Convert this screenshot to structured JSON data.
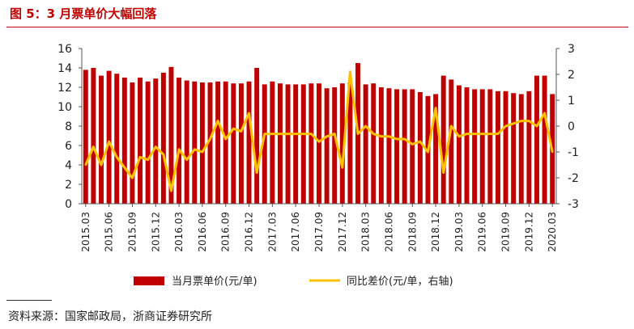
{
  "title": "图 5：3 月票单价大幅回落",
  "source": "资料来源：国家邮政局，浙商证券研究所",
  "colors": {
    "bar": "#c00000",
    "line": "#ffc000",
    "title": "#c00000"
  },
  "chart_data": {
    "type": "bar",
    "legend_position": "bottom",
    "grid": false,
    "x": [
      "2015.03",
      "2015.04",
      "2015.05",
      "2015.06",
      "2015.07",
      "2015.08",
      "2015.09",
      "2015.10",
      "2015.11",
      "2015.12",
      "2016.01",
      "2016.02",
      "2016.03",
      "2016.04",
      "2016.05",
      "2016.06",
      "2016.07",
      "2016.08",
      "2016.09",
      "2016.10",
      "2016.11",
      "2016.12",
      "2017.01",
      "2017.02",
      "2017.03",
      "2017.04",
      "2017.05",
      "2017.06",
      "2017.07",
      "2017.08",
      "2017.09",
      "2017.10",
      "2017.11",
      "2017.12",
      "2018.01",
      "2018.02",
      "2018.03",
      "2018.04",
      "2018.05",
      "2018.06",
      "2018.07",
      "2018.08",
      "2018.09",
      "2018.10",
      "2018.11",
      "2018.12",
      "2019.01",
      "2019.02",
      "2019.03",
      "2019.04",
      "2019.05",
      "2019.06",
      "2019.07",
      "2019.08",
      "2019.09",
      "2019.10",
      "2019.11",
      "2019.12",
      "2020.01",
      "2020.02",
      "2020.03"
    ],
    "x_tick_labels": [
      "2015.03",
      "2015.06",
      "2015.09",
      "2015.12",
      "2016.03",
      "2016.06",
      "2016.09",
      "2016.12",
      "2017.03",
      "2017.06",
      "2017.09",
      "2017.12",
      "2018.03",
      "2018.06",
      "2018.09",
      "2018.12",
      "2019.03",
      "2019.06",
      "2019.09",
      "2019.12",
      "2020.03"
    ],
    "y_left": {
      "min": 0,
      "max": 16,
      "ticks": [
        0,
        2,
        4,
        6,
        8,
        10,
        12,
        14,
        16
      ]
    },
    "y_right": {
      "min": -3,
      "max": 3,
      "ticks": [
        -3,
        -2,
        -1,
        0,
        1,
        2,
        3
      ]
    },
    "series": [
      {
        "name": "当月票单价(元/单)",
        "type": "bar",
        "axis": "left",
        "values": [
          13.8,
          14.0,
          13.2,
          13.7,
          13.4,
          13.0,
          12.5,
          13.0,
          12.6,
          12.9,
          13.5,
          14.1,
          13.0,
          12.7,
          12.6,
          12.5,
          12.5,
          12.6,
          12.6,
          12.4,
          12.4,
          12.6,
          14.0,
          12.3,
          12.6,
          12.4,
          12.3,
          12.3,
          12.3,
          12.4,
          12.4,
          11.9,
          12.0,
          12.4,
          12.5,
          14.5,
          12.3,
          12.4,
          12.0,
          11.9,
          11.8,
          11.8,
          11.8,
          11.5,
          11.1,
          11.3,
          13.2,
          12.8,
          12.2,
          12.0,
          11.8,
          11.8,
          11.8,
          11.6,
          11.6,
          11.4,
          11.3,
          11.6,
          13.2,
          13.2,
          11.3
        ]
      },
      {
        "name": "同比差价(元/单，右轴)",
        "type": "line",
        "axis": "right",
        "values": [
          -1.5,
          -0.8,
          -1.5,
          -0.6,
          -1.2,
          -1.6,
          -2.0,
          -1.2,
          -1.3,
          -0.8,
          -1.1,
          -2.5,
          -0.9,
          -1.3,
          -0.9,
          -1.0,
          -0.5,
          0.2,
          -0.5,
          -0.1,
          -0.2,
          0.5,
          -1.8,
          -0.3,
          -0.3,
          -0.3,
          -0.3,
          -0.3,
          -0.3,
          -0.3,
          -0.6,
          -0.4,
          -0.3,
          -1.6,
          2.1,
          -0.3,
          0.0,
          -0.3,
          -0.4,
          -0.4,
          -0.5,
          -0.5,
          -0.7,
          -0.6,
          -1.0,
          0.7,
          -1.8,
          0.0,
          -0.4,
          -0.3,
          -0.3,
          -0.3,
          -0.3,
          -0.3,
          0.0,
          0.1,
          0.2,
          0.2,
          0.0,
          0.5,
          -1.0
        ]
      }
    ]
  }
}
